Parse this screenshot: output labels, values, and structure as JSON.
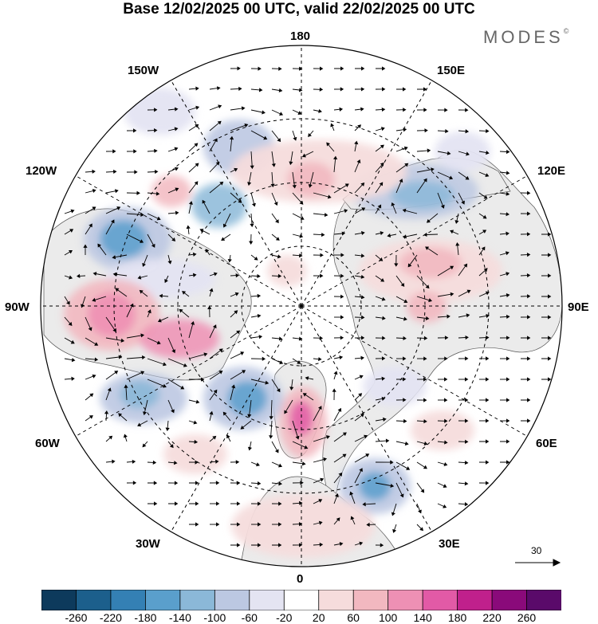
{
  "title": "Base 12/02/2025 00 UTC, valid 22/02/2025 00 UTC",
  "brand": {
    "name": "MODES",
    "mark": "©"
  },
  "longitude_labels": {
    "top": "180",
    "bottom": "0",
    "left": "90W",
    "right": "90E",
    "upper_left_1": "150W",
    "upper_left_2": "120W",
    "upper_right_1": "150E",
    "upper_right_2": "120E",
    "lower_left_1": "60W",
    "lower_left_2": "30W",
    "lower_right_1": "60E",
    "lower_right_2": "30E"
  },
  "vector_reference": {
    "value": "30"
  },
  "colorbar": {
    "ticks": [
      "-260",
      "-220",
      "-180",
      "-140",
      "-100",
      "-60",
      "-20",
      "20",
      "60",
      "100",
      "140",
      "180",
      "220",
      "260"
    ],
    "colors": [
      "#0d3a5c",
      "#1c5f8c",
      "#3480b4",
      "#5a9fcc",
      "#8bb8d8",
      "#bcc8e2",
      "#e4e4f2",
      "#ffffff",
      "#f6dcdc",
      "#f2b8c0",
      "#ee90b4",
      "#e25aa6",
      "#c0208c",
      "#8a0a7a",
      "#5a0a6a"
    ]
  },
  "map": {
    "projection": "north polar stereographic",
    "field": "anomaly shading with wind vectors",
    "land_color": "#ebebeb",
    "ocean_color": "#ffffff"
  }
}
